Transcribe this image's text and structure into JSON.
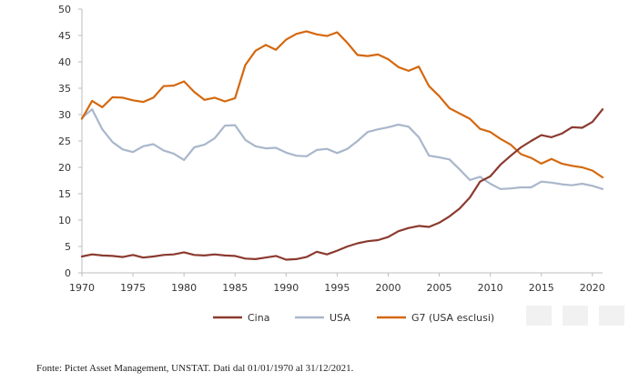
{
  "chart_data": {
    "type": "line",
    "title": "",
    "xlabel": "",
    "ylabel": "",
    "xlim": [
      1970,
      2021
    ],
    "ylim": [
      0,
      50
    ],
    "x_ticks": [
      1970,
      1975,
      1980,
      1985,
      1990,
      1995,
      2000,
      2005,
      2010,
      2015,
      2020
    ],
    "y_ticks": [
      0,
      5,
      10,
      15,
      20,
      25,
      30,
      35,
      40,
      45,
      50
    ],
    "grid": false,
    "legend_position": "bottom",
    "x": [
      1970,
      1971,
      1972,
      1973,
      1974,
      1975,
      1976,
      1977,
      1978,
      1979,
      1980,
      1981,
      1982,
      1983,
      1984,
      1985,
      1986,
      1987,
      1988,
      1989,
      1990,
      1991,
      1992,
      1993,
      1994,
      1995,
      1996,
      1997,
      1998,
      1999,
      2000,
      2001,
      2002,
      2003,
      2004,
      2005,
      2006,
      2007,
      2008,
      2009,
      2010,
      2011,
      2012,
      2013,
      2014,
      2015,
      2016,
      2017,
      2018,
      2019,
      2020,
      2021
    ],
    "series": [
      {
        "name": "Cina",
        "color": "#8b3a2f",
        "values": [
          3.1,
          3.5,
          3.3,
          3.2,
          3.0,
          3.4,
          2.9,
          3.1,
          3.4,
          3.5,
          3.9,
          3.4,
          3.3,
          3.5,
          3.3,
          3.2,
          2.7,
          2.6,
          2.9,
          3.2,
          2.5,
          2.6,
          3.0,
          4.0,
          3.5,
          4.2,
          5.0,
          5.6,
          6.0,
          6.2,
          6.8,
          7.9,
          8.5,
          8.9,
          8.7,
          9.5,
          10.7,
          12.2,
          14.3,
          17.3,
          18.3,
          20.5,
          22.2,
          23.8,
          25.0,
          26.1,
          25.7,
          26.4,
          27.6,
          27.5,
          28.6,
          31.0
        ]
      },
      {
        "name": "USA",
        "color": "#a9b7cb",
        "values": [
          29.4,
          31.0,
          27.2,
          24.8,
          23.4,
          22.9,
          24.0,
          24.4,
          23.2,
          22.6,
          21.4,
          23.8,
          24.3,
          25.5,
          27.9,
          28.0,
          25.2,
          24.0,
          23.6,
          23.7,
          22.8,
          22.2,
          22.1,
          23.3,
          23.5,
          22.7,
          23.5,
          25.0,
          26.7,
          27.2,
          27.6,
          28.1,
          27.7,
          25.7,
          22.2,
          21.9,
          21.5,
          19.6,
          17.6,
          18.2,
          16.9,
          15.9,
          16.0,
          16.2,
          16.2,
          17.3,
          17.1,
          16.8,
          16.6,
          16.9,
          16.5,
          15.9
        ]
      },
      {
        "name": "G7 (USA esclusi)",
        "color": "#d4680f",
        "values": [
          29.2,
          32.6,
          31.4,
          33.3,
          33.2,
          32.7,
          32.4,
          33.2,
          35.4,
          35.5,
          36.3,
          34.3,
          32.8,
          33.2,
          32.5,
          33.1,
          39.4,
          42.1,
          43.2,
          42.3,
          44.2,
          45.3,
          45.8,
          45.2,
          44.9,
          45.6,
          43.6,
          41.3,
          41.1,
          41.4,
          40.5,
          39.0,
          38.3,
          39.1,
          35.4,
          33.5,
          31.2,
          30.2,
          29.2,
          27.3,
          26.7,
          25.4,
          24.3,
          22.5,
          21.8,
          20.7,
          21.6,
          20.7,
          20.3,
          20.0,
          19.4,
          18.1
        ]
      }
    ]
  },
  "legend": {
    "items": [
      {
        "label": "Cina",
        "color": "#8b3a2f"
      },
      {
        "label": "USA",
        "color": "#a9b7cb"
      },
      {
        "label": "G7 (USA esclusi)",
        "color": "#d4680f"
      }
    ]
  },
  "source": "Fonte: Pictet Asset Management, UNSTAT. Dati dal 01/01/1970 al 31/12/2021."
}
